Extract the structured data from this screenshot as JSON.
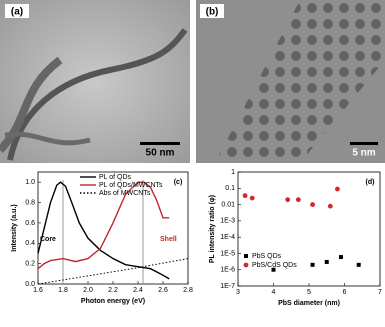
{
  "images": [
    {
      "label": "(a)",
      "scale_bar": "50 nm"
    },
    {
      "label": "(b)",
      "scale_bar": "5 nm"
    }
  ],
  "chart_data": [
    {
      "type": "line",
      "panel": "(c)",
      "xlabel": "Photon energy (eV)",
      "ylabel": "Intensity (a.u.)",
      "xlim": [
        1.6,
        2.8
      ],
      "xticks": [
        1.6,
        1.8,
        {
          "value": 2,
          "label": "2.0"
        },
        2.2,
        2.4,
        2.6,
        2.8
      ],
      "ylim": [
        0,
        1.1
      ],
      "yticks": [
        {
          "value": 0,
          "label": "0.0"
        },
        0.2,
        0.4,
        0.6,
        0.8,
        {
          "value": 1,
          "label": "1.0"
        }
      ],
      "legend": "top-right",
      "vlines": [
        1.8,
        2.44
      ],
      "vline_color": "#999999",
      "annotations": [
        {
          "text": "Core",
          "color": "#000000"
        },
        {
          "text": "Shell",
          "color": "#c0272d"
        }
      ],
      "series": [
        {
          "name": "PL of QDs",
          "color": "#000000",
          "dash": false,
          "x": [
            1.6,
            1.65,
            1.7,
            1.75,
            1.78,
            1.82,
            1.87,
            1.93,
            2.0,
            2.1,
            2.2,
            2.3,
            2.4,
            2.5,
            2.58,
            2.65
          ],
          "values": [
            0.3,
            0.55,
            0.8,
            0.97,
            1.0,
            0.96,
            0.8,
            0.6,
            0.45,
            0.33,
            0.25,
            0.19,
            0.17,
            0.15,
            0.1,
            0.05
          ]
        },
        {
          "name": "PL of QDs/MWCNTs",
          "color": "#c0272d",
          "dash": false,
          "x": [
            1.6,
            1.65,
            1.7,
            1.8,
            1.9,
            2.0,
            2.1,
            2.2,
            2.3,
            2.4,
            2.45,
            2.5,
            2.55,
            2.6,
            2.65
          ],
          "values": [
            0.15,
            0.2,
            0.23,
            0.25,
            0.22,
            0.25,
            0.35,
            0.6,
            0.88,
            1.0,
            1.0,
            0.95,
            0.82,
            0.65,
            0.65
          ]
        },
        {
          "name": "Abs of MWCNTs",
          "color": "#000000",
          "dash": true,
          "x": [
            1.6,
            2.0,
            2.4,
            2.8
          ],
          "values": [
            0.0,
            0.08,
            0.16,
            0.25
          ]
        }
      ]
    },
    {
      "type": "scatter",
      "panel": "(d)",
      "xlabel": "PbS diameter (nm)",
      "ylabel": "PL intensity ratio (φ)",
      "log_y": true,
      "xlim": [
        3,
        7
      ],
      "xticks": [
        3,
        4,
        5,
        6,
        7
      ],
      "ylim": [
        1e-07,
        1
      ],
      "yticks": [
        {
          "value": 1e-07,
          "label": "1E-7"
        },
        {
          "value": 1e-06,
          "label": "1E-6"
        },
        {
          "value": 1e-05,
          "label": "1E-5"
        },
        {
          "value": 0.0001,
          "label": "1E-4"
        },
        {
          "value": 0.001,
          "label": "1E-3"
        },
        0.01,
        0.1,
        1
      ],
      "legend": "bottom-left",
      "series": [
        {
          "name": "PbS QDs",
          "color": "#000000",
          "marker": "square",
          "x": [
            4.0,
            5.1,
            5.5,
            5.9,
            6.4
          ],
          "values": [
            1e-06,
            2e-06,
            3e-06,
            6e-06,
            2e-06
          ]
        },
        {
          "name": "PbS/CdS QDs",
          "color": "#d7262d",
          "marker": "circle",
          "x": [
            3.2,
            3.4,
            4.4,
            4.7,
            5.1,
            5.6,
            5.8
          ],
          "values": [
            0.035,
            0.025,
            0.02,
            0.02,
            0.01,
            0.008,
            0.09
          ]
        }
      ]
    }
  ]
}
